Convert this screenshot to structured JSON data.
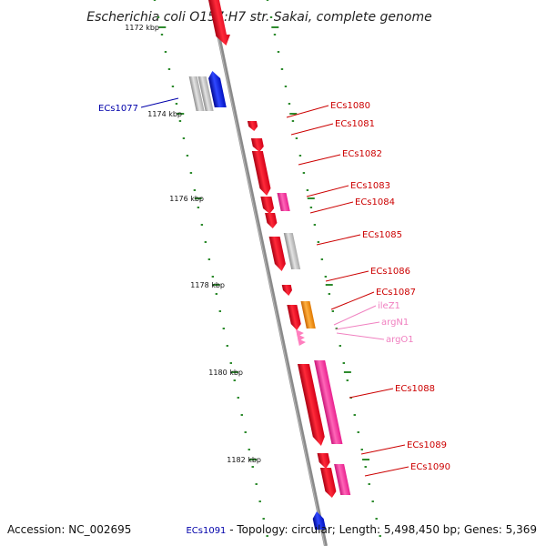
{
  "title": "Escherichia coli O157:H7 str. Sakai, complete genome",
  "footer": {
    "accession": "Accession: NC_002695",
    "highlight_gene": "ECs1091",
    "summary": " - Topology: circular; Length: 5,498,450 bp; Genes: 5,369"
  },
  "colors": {
    "backbone": "#8a8a8a",
    "tick": "#2e8b2e",
    "gene_red": "#e8001c",
    "gene_pink": "#ff3fa0",
    "gene_grey": "#b8b8b8",
    "gene_blue": "#0018d8",
    "gene_orange": "#ff8c00",
    "rna_pink": "#ff7fbf",
    "label_red": "#cc0000",
    "label_blue": "#0000aa",
    "label_pink": "#f080c0"
  },
  "kbp_labels": [
    "1172 kbp",
    "1174 kbp",
    "1176 kbp",
    "1178 kbp",
    "1180 kbp",
    "1182 kbp"
  ],
  "gene_labels": [
    {
      "text": "ECs1077",
      "color": "label_blue"
    },
    {
      "text": "ECs1080",
      "color": "label_red"
    },
    {
      "text": "ECs1081",
      "color": "label_red"
    },
    {
      "text": "ECs1082",
      "color": "label_red"
    },
    {
      "text": "ECs1083",
      "color": "label_red"
    },
    {
      "text": "ECs1084",
      "color": "label_red"
    },
    {
      "text": "ECs1085",
      "color": "label_red"
    },
    {
      "text": "ECs1086",
      "color": "label_red"
    },
    {
      "text": "ECs1087",
      "color": "label_red"
    },
    {
      "text": "ileZ1",
      "color": "label_pink"
    },
    {
      "text": "argN1",
      "color": "label_pink"
    },
    {
      "text": "argO1",
      "color": "label_pink"
    },
    {
      "text": "ECs1088",
      "color": "label_red"
    },
    {
      "text": "ECs1089",
      "color": "label_red"
    },
    {
      "text": "ECs1090",
      "color": "label_red"
    }
  ]
}
